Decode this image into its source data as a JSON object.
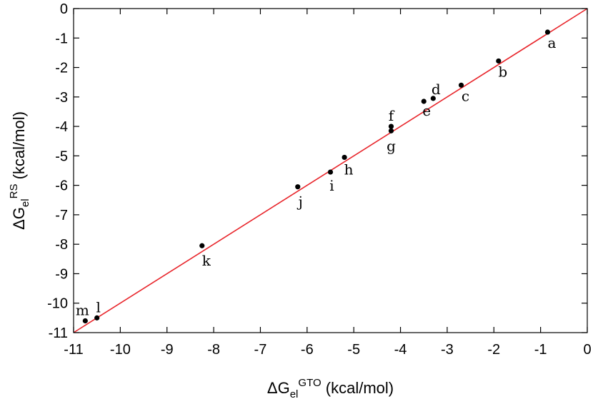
{
  "chart_data": {
    "type": "scatter",
    "title": "",
    "xlabel": {
      "base": "ΔG",
      "sub": "el",
      "sup": "GTO",
      "unit": " (kcal/mol)"
    },
    "ylabel": {
      "base": "ΔG",
      "sub": "el",
      "sup": "RS",
      "unit": " (kcal/mol)"
    },
    "xlim": [
      -11,
      0
    ],
    "ylim": [
      -11,
      0
    ],
    "xticks": [
      -11,
      -10,
      -9,
      -8,
      -7,
      -6,
      -5,
      -4,
      -3,
      -2,
      -1,
      0
    ],
    "yticks": [
      -11,
      -10,
      -9,
      -8,
      -7,
      -6,
      -5,
      -4,
      -3,
      -2,
      -1,
      0
    ],
    "grid": false,
    "reference_line": {
      "from": [
        -11,
        -11
      ],
      "to": [
        0,
        0
      ],
      "color": "#e8242a"
    },
    "point_color": "#000000",
    "points": [
      {
        "label": "a",
        "x": -0.85,
        "y": -0.8
      },
      {
        "label": "b",
        "x": -1.9,
        "y": -1.78
      },
      {
        "label": "c",
        "x": -2.7,
        "y": -2.6
      },
      {
        "label": "d",
        "x": -3.3,
        "y": -3.05
      },
      {
        "label": "e",
        "x": -3.5,
        "y": -3.15
      },
      {
        "label": "f",
        "x": -4.2,
        "y": -4.0
      },
      {
        "label": "g",
        "x": -4.2,
        "y": -4.15
      },
      {
        "label": "h",
        "x": -5.2,
        "y": -5.05
      },
      {
        "label": "i",
        "x": -5.5,
        "y": -5.55
      },
      {
        "label": "j",
        "x": -6.2,
        "y": -6.05
      },
      {
        "label": "k",
        "x": -8.25,
        "y": -8.05
      },
      {
        "label": "l",
        "x": -10.5,
        "y": -10.5
      },
      {
        "label": "m",
        "x": -10.75,
        "y": -10.6
      }
    ]
  }
}
